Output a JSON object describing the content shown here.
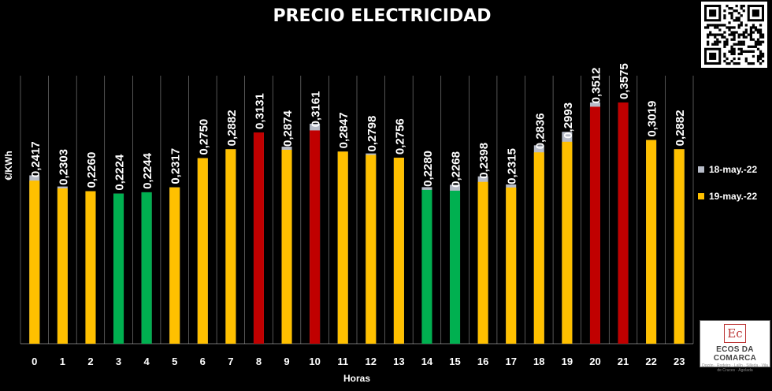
{
  "chart_data": {
    "type": "bar",
    "title": "PRECIO ELECTRICIDAD",
    "xlabel": "Horas",
    "ylabel": "€/KWh",
    "ylim": [
      0,
      0.3575
    ],
    "categories": [
      "0",
      "1",
      "2",
      "3",
      "4",
      "5",
      "6",
      "7",
      "8",
      "9",
      "10",
      "11",
      "12",
      "13",
      "14",
      "15",
      "16",
      "17",
      "18",
      "19",
      "20",
      "21",
      "22",
      "23"
    ],
    "series": [
      {
        "name": "19-may.-22",
        "values": [
          0.2417,
          0.2303,
          0.226,
          0.2224,
          0.2244,
          0.2317,
          0.275,
          0.2882,
          0.3131,
          0.2874,
          0.3161,
          0.2847,
          0.2798,
          0.2756,
          0.228,
          0.2268,
          0.2398,
          0.2315,
          0.2836,
          0.2993,
          0.3512,
          0.3575,
          0.3019,
          0.2882
        ],
        "labels": [
          "0,2417",
          "0,2303",
          "0,2260",
          "0,2224",
          "0,2244",
          "0,2317",
          "0,2750",
          "0,2882",
          "0,3131",
          "0,2874",
          "0,3161",
          "0,2847",
          "0,2798",
          "0,2756",
          "0,2280",
          "0,2268",
          "0,2398",
          "0,2315",
          "0,2836",
          "0,2993",
          "0,3512",
          "0,3575",
          "0,3019",
          "0,2882"
        ],
        "bar_colors": [
          "#ffc000",
          "#ffc000",
          "#ffc000",
          "#00b050",
          "#00b050",
          "#ffc000",
          "#ffc000",
          "#ffc000",
          "#c00000",
          "#ffc000",
          "#c00000",
          "#ffc000",
          "#ffc000",
          "#ffc000",
          "#00b050",
          "#00b050",
          "#ffc000",
          "#ffc000",
          "#ffc000",
          "#ffc000",
          "#c00000",
          "#c00000",
          "#ffc000",
          "#ffc000"
        ]
      },
      {
        "name": "18-may.-22",
        "values": [
          0.2495,
          0.233,
          0.226,
          0.2224,
          0.2244,
          0.2317,
          0.275,
          0.2882,
          0.3131,
          0.292,
          0.326,
          0.2847,
          0.282,
          0.2756,
          0.232,
          0.2355,
          0.248,
          0.236,
          0.294,
          0.314,
          0.3575,
          0.3575,
          0.3019,
          0.2882
        ],
        "color": "#b7bcc8"
      }
    ]
  },
  "colors": {
    "background": "#000000",
    "text": "#ffffff",
    "gridline": "#ffffff"
  },
  "logo": {
    "mark": "Ec",
    "name": "ECOS DA COMARCA",
    "tagline": "Dozón · Rodeiro · Lalín · Silleda · Vila de Cruces · Agolada"
  }
}
